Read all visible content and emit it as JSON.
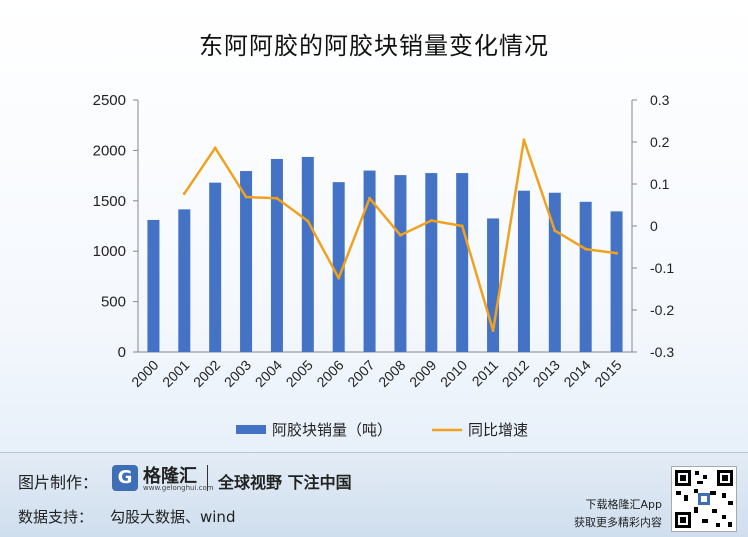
{
  "chart_data": {
    "type": "bar+line",
    "title": "东阿阿胶的阿胶块销量变化情况",
    "categories": [
      "2000",
      "2001",
      "2002",
      "2003",
      "2004",
      "2005",
      "2006",
      "2007",
      "2008",
      "2009",
      "2010",
      "2011",
      "2012",
      "2013",
      "2014",
      "2015"
    ],
    "series": [
      {
        "name": "阿胶块销量（吨）",
        "type": "bar",
        "axis": "left",
        "color": "#4472c4",
        "values": [
          1310,
          1415,
          1680,
          1795,
          1915,
          1935,
          1685,
          1800,
          1755,
          1775,
          1775,
          1325,
          1600,
          1580,
          1490,
          1395
        ]
      },
      {
        "name": "同比增速",
        "type": "line",
        "axis": "right",
        "color": "#f0a21f",
        "values": [
          null,
          0.077,
          0.186,
          0.069,
          0.066,
          0.012,
          -0.124,
          0.066,
          -0.022,
          0.013,
          0.0,
          -0.249,
          0.205,
          -0.011,
          -0.055,
          -0.065
        ]
      }
    ],
    "y_left": {
      "min": 0,
      "max": 2500,
      "ticks": [
        0,
        500,
        1000,
        1500,
        2000,
        2500
      ],
      "tick_labels": [
        "0",
        "500",
        "1000",
        "1500",
        "2000",
        "2500"
      ]
    },
    "y_right": {
      "min": -0.3,
      "max": 0.3,
      "ticks": [
        -0.3,
        -0.2,
        -0.1,
        0,
        0.1,
        0.2,
        0.3
      ],
      "tick_labels": [
        "-0.3",
        "-0.2",
        "-0.1",
        "0",
        "0.1",
        "0.2",
        "0.3"
      ]
    },
    "grid": false,
    "legend_position": "bottom"
  },
  "footer": {
    "image_credit_label": "图片制作：",
    "data_support_label": "数据支持：",
    "data_source": "勾股大数据、wind",
    "logo_name": "格隆汇",
    "logo_url": "www.gelonghui.com",
    "slogan": "全球视野 下注中国",
    "download_line1": "下载格隆汇App",
    "download_line2": "获取更多精彩内容"
  },
  "colors": {
    "bar": "#4472c4",
    "line": "#f0a21f",
    "logo": "#3e6fb6"
  },
  "icons": {
    "logo": "gelonghui-logo-icon",
    "qr": "qr-code-icon"
  }
}
